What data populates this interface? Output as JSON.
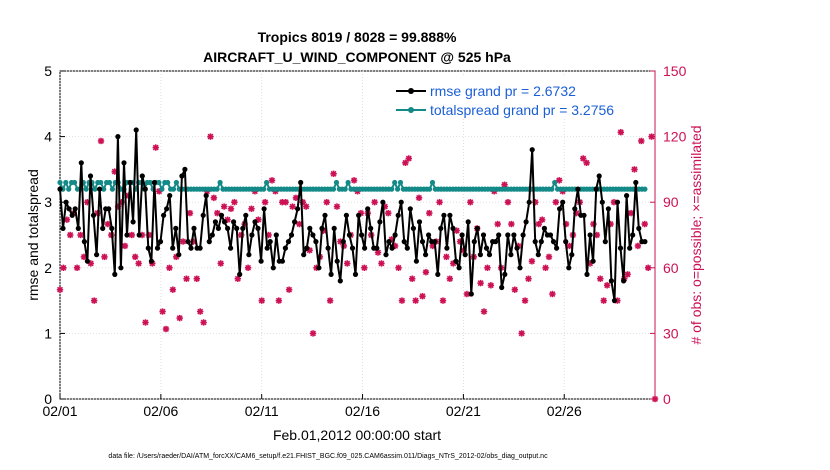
{
  "chart_data": {
    "type": "line",
    "title_line1": "Tropics 8019 / 8028 = 99.888%",
    "title_line2": "AIRCRAFT_U_WIND_COMPONENT @ 525 hPa",
    "xlabel": "Feb.01,2012 00:00:00 start",
    "ylabel_left": "rmse and totalspread",
    "ylabel_right": "# of obs: o=possible; ×=assimilated",
    "footer": "data file: /Users/raeder/DAI/ATM_forcXX/CAM6_setup/f.e21.FHIST_BGC.f09_025.CAM6assim.011/Diags_NTrS_2012-02/obs_diag_output.nc",
    "xlim": [
      0,
      29.5
    ],
    "ylim_left": [
      0,
      5
    ],
    "ylim_right": [
      0,
      150
    ],
    "x_ticks": [
      {
        "v": 0,
        "label": "02/01"
      },
      {
        "v": 5,
        "label": "02/06"
      },
      {
        "v": 10,
        "label": "02/11"
      },
      {
        "v": 15,
        "label": "02/16"
      },
      {
        "v": 20,
        "label": "02/21"
      },
      {
        "v": 25,
        "label": "02/26"
      }
    ],
    "y_ticks_left": [
      0,
      1,
      2,
      3,
      4,
      5
    ],
    "y_ticks_right": [
      0,
      30,
      60,
      90,
      120,
      150
    ],
    "colors": {
      "rmse": "#000000",
      "spread": "#138a87",
      "obs": "#cc1155",
      "legend_text": "#1b5fd6"
    },
    "series": [
      {
        "name": "rmse",
        "legend": "rmse grand pr = 2.6732",
        "values": [
          3.2,
          2.6,
          3.0,
          2.9,
          2.8,
          2.9,
          2.6,
          3.6,
          2.4,
          2.1,
          3.4,
          2.8,
          2.2,
          3.2,
          2.6,
          2.9,
          2.9,
          2.6,
          1.9,
          4.0,
          2.0,
          3.6,
          2.5,
          3.3,
          2.7,
          4.1,
          2.5,
          3.4,
          3.2,
          2.3,
          2.1,
          3.3,
          2.3,
          2.4,
          2.8,
          2.9,
          3.1,
          2.3,
          2.6,
          2.2,
          3.4,
          3.5,
          2.4,
          2.3,
          2.6,
          2.3,
          2.3,
          2.8,
          3.1,
          2.4,
          2.5,
          2.7,
          2.6,
          2.8,
          2.7,
          2.6,
          2.3,
          2.7,
          2.6,
          1.9,
          2.6,
          2.8,
          2.2,
          2.5,
          2.7,
          2.6,
          2.1,
          2.9,
          2.3,
          2.4,
          2.0,
          2.5,
          2.1,
          2.1,
          2.3,
          2.4,
          2.5,
          2.7,
          2.9,
          3.3,
          2.2,
          2.3,
          2.6,
          2.5,
          2.4,
          2.0,
          2.6,
          2.8,
          2.3,
          1.9,
          2.6,
          2.1,
          1.8,
          2.4,
          2.8,
          2.5,
          2.3,
          1.9,
          2.8,
          2.5,
          2.3,
          2.9,
          2.6,
          2.3,
          2.3,
          2.7,
          3.0,
          2.2,
          2.4,
          2.3,
          2.5,
          2.8,
          3.0,
          2.4,
          2.3,
          2.9,
          2.6,
          2.1,
          2.7,
          2.4,
          2.2,
          2.5,
          2.4,
          2.4,
          1.9,
          2.6,
          2.8,
          2.3,
          2.8,
          2.6,
          2.1,
          2.0,
          2.5,
          2.2,
          2.7,
          1.6,
          2.4,
          2.6,
          2.2,
          2.5,
          2.3,
          2.2,
          2.4,
          2.4,
          2.5,
          1.7,
          1.9,
          2.5,
          2.2,
          2.5,
          2.3,
          2.0,
          2.5,
          2.7,
          3.0,
          3.8,
          2.4,
          2.2,
          2.4,
          2.6,
          2.5,
          2.5,
          2.4,
          2.3,
          2.9,
          3.0,
          2.4,
          2.0,
          2.2,
          2.9,
          3.2,
          2.8,
          2.8,
          1.9,
          2.5,
          2.1,
          3.2,
          3.4,
          3.0,
          2.4,
          2.9,
          1.8,
          1.5,
          3.0,
          2.3,
          1.8,
          3.1,
          2.3,
          2.5,
          3.3,
          2.6,
          2.4,
          2.4
        ]
      },
      {
        "name": "totalspread",
        "legend": "totalspread grand pr = 3.2756",
        "values": [
          3.3,
          3.2,
          3.3,
          3.2,
          3.3,
          3.3,
          3.2,
          3.2,
          3.3,
          3.2,
          3.3,
          3.3,
          3.2,
          3.3,
          3.3,
          3.2,
          3.3,
          3.3,
          3.2,
          3.3,
          3.3,
          3.2,
          3.2,
          3.3,
          3.3,
          3.3,
          3.2,
          3.3,
          3.3,
          3.2,
          3.3,
          3.3,
          3.2,
          3.3,
          3.3,
          3.2,
          3.3,
          3.3,
          3.2,
          3.2,
          3.3,
          3.2,
          3.2,
          3.2,
          3.2,
          3.2,
          3.2,
          3.2,
          3.2,
          3.2,
          3.2,
          3.2,
          3.2,
          3.2,
          3.2,
          3.3,
          3.2,
          3.2,
          3.2,
          3.2,
          3.2,
          3.2,
          3.2,
          3.2,
          3.2,
          3.2,
          3.2,
          3.2,
          3.2,
          3.2,
          3.2,
          3.3,
          3.2,
          3.2,
          3.2,
          3.2,
          3.2,
          3.2,
          3.2,
          3.2,
          3.2,
          3.2,
          3.2,
          3.2,
          3.2,
          3.2,
          3.2,
          3.2,
          3.2,
          3.2,
          3.2,
          3.2,
          3.2,
          3.2,
          3.2,
          3.3,
          3.2,
          3.2,
          3.2,
          3.3,
          3.2,
          3.2,
          3.2,
          3.2,
          3.2,
          3.2,
          3.2,
          3.2,
          3.2,
          3.2,
          3.2,
          3.2,
          3.2,
          3.2,
          3.2,
          3.3,
          3.2,
          3.3,
          3.2,
          3.2,
          3.2,
          3.2,
          3.2,
          3.2,
          3.2,
          3.2,
          3.2,
          3.2,
          3.3,
          3.2,
          3.2,
          3.2,
          3.2,
          3.2,
          3.2,
          3.2,
          3.2,
          3.2,
          3.2,
          3.2,
          3.2,
          3.2,
          3.2,
          3.2,
          3.2,
          3.2,
          3.2,
          3.2,
          3.2,
          3.2,
          3.2,
          3.2,
          3.2,
          3.2,
          3.2,
          3.2,
          3.2,
          3.2,
          3.2,
          3.2,
          3.2,
          3.2,
          3.2,
          3.2,
          3.2,
          3.2,
          3.2,
          3.2,
          3.2,
          3.2,
          3.3,
          3.2,
          3.2,
          3.2,
          3.2,
          3.2,
          3.2,
          3.2,
          3.2,
          3.2,
          3.2,
          3.2,
          3.2,
          3.2,
          3.2,
          3.2,
          3.2,
          3.2,
          3.2,
          3.2,
          3.2,
          3.2,
          3.2,
          3.2,
          3.2,
          3.2,
          3.2,
          3.2,
          3.2,
          3.2,
          3.2,
          3.2
        ]
      },
      {
        "name": "obs_assimilated",
        "axis": "right",
        "values": [
          50,
          60,
          82,
          75,
          85,
          60,
          75,
          65,
          90,
          62,
          45,
          85,
          118,
          65,
          80,
          75,
          104,
          88,
          90,
          70,
          93,
          75,
          65,
          62,
          75,
          35,
          75,
          62,
          115,
          95,
          40,
          32,
          60,
          50,
          65,
          37,
          72,
          55,
          85,
          72,
          55,
          40,
          35,
          95,
          120,
          92,
          85,
          62,
          88,
          82,
          87,
          90,
          55,
          75,
          80,
          60,
          87,
          95,
          82,
          45,
          90,
          75,
          100,
          95,
          45,
          90,
          90,
          50,
          88,
          92,
          80,
          90,
          88,
          68,
          30,
          60,
          65,
          77,
          90,
          45,
          103,
          88,
          72,
          70,
          62,
          75,
          100,
          95,
          85,
          60,
          85,
          75,
          90,
          67,
          62,
          88,
          85,
          73,
          70,
          60,
          45,
          108,
          110,
          55,
          45,
          92,
          47,
          58,
          85,
          70,
          72,
          90,
          45,
          65,
          55,
          62,
          77,
          72,
          68,
          48,
          90,
          65,
          78,
          53,
          40,
          60,
          52,
          95,
          80,
          60,
          98,
          90,
          80,
          50,
          70,
          30,
          45,
          55,
          63,
          90,
          80,
          82,
          60,
          65,
          48,
          90,
          100,
          95,
          80,
          70,
          75,
          85,
          90,
          110,
          108,
          62,
          80,
          75,
          55,
          45,
          52,
          80,
          90,
          45,
          122,
          55,
          57,
          85,
          105,
          70,
          118,
          80,
          60,
          120,
          0
        ]
      }
    ]
  }
}
